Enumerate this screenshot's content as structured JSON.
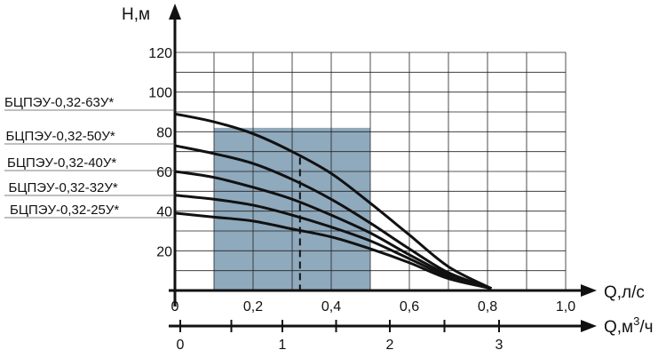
{
  "chart_data": {
    "type": "line",
    "y_axis": {
      "label": "H,м",
      "ticks": [
        "20",
        "40",
        "60",
        "80",
        "100",
        "120"
      ],
      "range": [
        0,
        120
      ]
    },
    "x_axis": {
      "label": "Q,л/с",
      "ticks": [
        "0",
        "0,2",
        "0,4",
        "0,6",
        "0,8",
        "1,0"
      ],
      "range": [
        0,
        1.0
      ]
    },
    "x2_axis": {
      "label_prefix": "Q,м",
      "label_sup": "3",
      "label_suffix": "/ч",
      "ticks": [
        "0",
        "1",
        "2",
        "3"
      ],
      "range": [
        0,
        3.6
      ]
    },
    "grid": true,
    "working_zone": {
      "q_from": 0.1,
      "q_to": 0.5,
      "h_from": 0,
      "h_to": 82,
      "color": "#8fa9bd"
    },
    "nominal_line": {
      "q": 0.32,
      "h_top": 67
    },
    "series": [
      {
        "name": "БЦПЭУ-0,32-63У*",
        "x": [
          0,
          0.1,
          0.2,
          0.3,
          0.4,
          0.5,
          0.6,
          0.7,
          0.81
        ],
        "y": [
          89,
          85,
          79,
          70,
          59,
          44,
          28,
          12,
          1
        ]
      },
      {
        "name": "БЦПЭУ-0,32-50У*",
        "x": [
          0,
          0.1,
          0.2,
          0.3,
          0.4,
          0.5,
          0.6,
          0.7,
          0.81
        ],
        "y": [
          73,
          69,
          64,
          56,
          46,
          34,
          21,
          9,
          1
        ]
      },
      {
        "name": "БЦПЭУ-0,32-40У*",
        "x": [
          0,
          0.1,
          0.2,
          0.3,
          0.4,
          0.5,
          0.6,
          0.7,
          0.81
        ],
        "y": [
          60,
          57,
          52,
          46,
          38,
          29,
          18,
          8,
          1
        ]
      },
      {
        "name": "БЦПЭУ-0,32-32У*",
        "x": [
          0,
          0.1,
          0.2,
          0.3,
          0.4,
          0.5,
          0.6,
          0.7,
          0.81
        ],
        "y": [
          48,
          46,
          43,
          38,
          32,
          25,
          16,
          7,
          1
        ]
      },
      {
        "name": "БЦПЭУ-0,32-25У*",
        "x": [
          0,
          0.1,
          0.2,
          0.3,
          0.4,
          0.5,
          0.6,
          0.7,
          0.81
        ],
        "y": [
          39,
          37,
          35,
          31,
          27,
          21,
          14,
          6,
          1
        ]
      }
    ],
    "colors": {
      "line": "#111111",
      "grid": "#222222",
      "zone": "#8fa9bd"
    }
  }
}
